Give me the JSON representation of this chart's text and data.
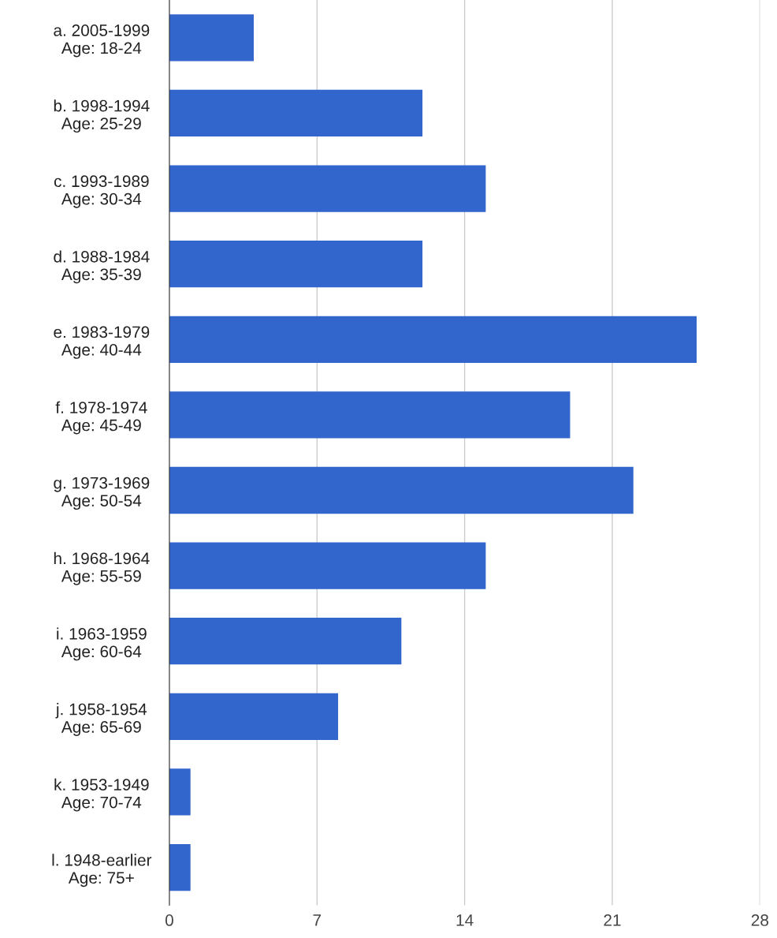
{
  "chart_data": {
    "type": "bar",
    "orientation": "horizontal",
    "categories": [
      "a. 2005-1999\nAge: 18-24",
      "b. 1998-1994\nAge: 25-29",
      "c. 1993-1989\nAge: 30-34",
      "d. 1988-1984\nAge: 35-39",
      "e. 1983-1979\nAge: 40-44",
      "f. 1978-1974\nAge: 45-49",
      "g. 1973-1969\nAge: 50-54",
      "h. 1968-1964\nAge: 55-59",
      "i. 1963-1959\nAge: 60-64",
      "j. 1958-1954\nAge: 65-69",
      "k. 1953-1949\nAge: 70-74",
      "l. 1948-earlier\nAge: 75+"
    ],
    "values": [
      4,
      12,
      15,
      12,
      25,
      19,
      22,
      15,
      11,
      8,
      1,
      1
    ],
    "color": "#3366cc",
    "xlim": [
      0,
      28
    ],
    "xticks": [
      0,
      7,
      14,
      21,
      28
    ],
    "grid": "x"
  }
}
